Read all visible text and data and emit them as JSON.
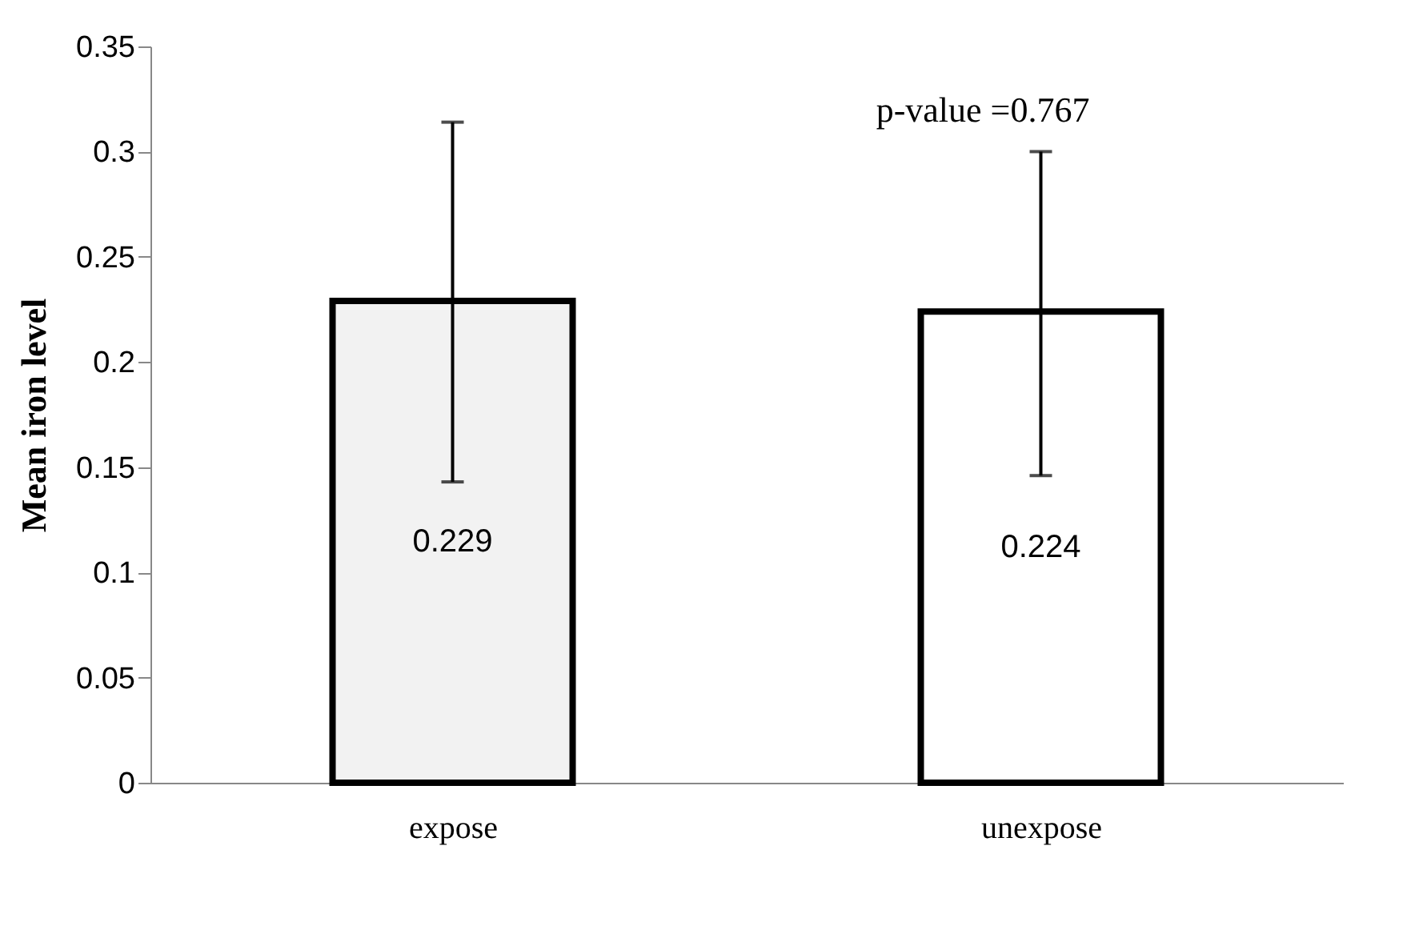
{
  "chart_data": {
    "type": "bar",
    "ylabel": "Mean  iron level",
    "categories": [
      "expose",
      "unexpose"
    ],
    "values": [
      0.229,
      0.224
    ],
    "colors": [
      "#f2f2f2",
      "#ffffff"
    ],
    "errors": [
      [
        0.143,
        0.314
      ],
      [
        0.146,
        0.3
      ]
    ],
    "data_labels": true,
    "ylim": [
      0,
      0.35
    ],
    "yticks": [
      0,
      0.05,
      0.1,
      0.15,
      0.2,
      0.25,
      0.3,
      0.35
    ],
    "grid": false,
    "annotations": [
      "p-value =0.767"
    ]
  }
}
